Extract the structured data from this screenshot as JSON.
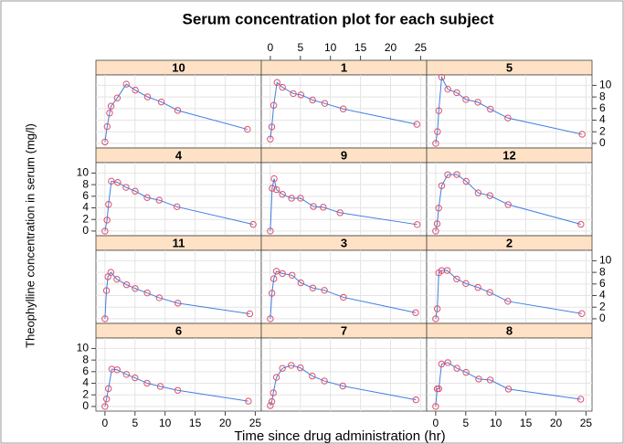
{
  "chart_data": {
    "type": "line",
    "title": "Serum concentration plot for each subject",
    "x_label": "Time since drug administration (hr)",
    "y_label": "Theophylline concentration in serum (mg/l)",
    "xlim": [
      -1.5,
      26
    ],
    "ylim": [
      -0.8,
      11.8
    ],
    "xticks": [
      0,
      5,
      10,
      15,
      20,
      25
    ],
    "yticks": [
      0,
      2,
      4,
      6,
      8,
      10
    ],
    "grid": true,
    "color": "#3d7fe0",
    "marker_color": "#e0506a",
    "strip_color": "#ffe2c6",
    "columns": 3,
    "panels": [
      {
        "name": "10",
        "x": [
          0,
          0.37,
          0.77,
          1.02,
          2.05,
          3.55,
          5.05,
          7.08,
          9.38,
          12.1,
          23.7
        ],
        "values": [
          0.24,
          2.89,
          5.22,
          6.41,
          7.83,
          10.21,
          9.18,
          8.02,
          7.14,
          5.68,
          2.42
        ]
      },
      {
        "name": "1",
        "x": [
          0,
          0.25,
          0.57,
          1.12,
          2.02,
          3.82,
          5.1,
          7.03,
          9.05,
          12.12,
          24.37
        ],
        "values": [
          0.74,
          2.84,
          6.57,
          10.5,
          9.66,
          8.58,
          8.36,
          7.47,
          6.89,
          5.94,
          3.28
        ]
      },
      {
        "name": "5",
        "x": [
          0,
          0.3,
          0.52,
          1,
          2.02,
          3.5,
          5.02,
          7.02,
          9.1,
          12,
          24.35
        ],
        "values": [
          0,
          2.02,
          5.63,
          11.4,
          9.33,
          8.74,
          7.56,
          7.09,
          5.9,
          4.37,
          1.57
        ]
      },
      {
        "name": "4",
        "x": [
          0,
          0.35,
          0.6,
          1.07,
          2.13,
          3.5,
          5.02,
          7.02,
          9.02,
          11.98,
          24.65
        ],
        "values": [
          0,
          1.89,
          4.6,
          8.6,
          8.38,
          7.54,
          6.88,
          5.78,
          5.33,
          4.19,
          1.15
        ]
      },
      {
        "name": "9",
        "x": [
          0,
          0.3,
          0.63,
          1.05,
          2.02,
          3.53,
          5.02,
          7.17,
          8.8,
          11.6,
          24.43
        ],
        "values": [
          0,
          7.37,
          9.03,
          7.14,
          6.33,
          5.66,
          5.67,
          4.24,
          4.11,
          3.16,
          1.12
        ]
      },
      {
        "name": "12",
        "x": [
          0,
          0.25,
          0.5,
          1,
          2,
          3.52,
          5.07,
          7.07,
          9.03,
          12.05,
          24.15
        ],
        "values": [
          0,
          1.25,
          3.96,
          7.82,
          9.72,
          9.75,
          8.57,
          6.59,
          6.11,
          4.57,
          1.17
        ]
      },
      {
        "name": "11",
        "x": [
          0,
          0.25,
          0.5,
          0.98,
          1.98,
          3.6,
          5.02,
          7.03,
          9.03,
          12.12,
          24.08
        ],
        "values": [
          0,
          4.86,
          7.24,
          8,
          6.81,
          5.87,
          5.22,
          4.45,
          3.62,
          2.69,
          0.86
        ]
      },
      {
        "name": "3",
        "x": [
          0,
          0.27,
          0.58,
          1.02,
          2.02,
          3.62,
          5.08,
          7.07,
          9,
          12.15,
          24.17
        ],
        "values": [
          0,
          4.4,
          6.9,
          8.2,
          7.8,
          7.5,
          6.2,
          5.3,
          4.9,
          3.7,
          1.05
        ]
      },
      {
        "name": "2",
        "x": [
          0,
          0.27,
          0.52,
          1,
          1.92,
          3.5,
          5.02,
          7.03,
          9,
          12,
          24.3
        ],
        "values": [
          0,
          1.72,
          7.91,
          8.31,
          8.33,
          6.85,
          6.08,
          5.4,
          4.55,
          3.01,
          0.9
        ]
      },
      {
        "name": "6",
        "x": [
          0,
          0.27,
          0.58,
          1.15,
          2.03,
          3.57,
          5,
          7,
          9.22,
          12.1,
          23.85
        ],
        "values": [
          0,
          1.29,
          3.08,
          6.44,
          6.32,
          5.53,
          4.94,
          4.02,
          3.46,
          2.78,
          0.92
        ]
      },
      {
        "name": "7",
        "x": [
          0,
          0.25,
          0.5,
          1.02,
          2.02,
          3.48,
          5,
          6.98,
          9,
          12.05,
          24.22
        ],
        "values": [
          0.15,
          0.85,
          2.35,
          5.02,
          6.58,
          7.09,
          6.66,
          5.25,
          4.39,
          3.53,
          1.15
        ]
      },
      {
        "name": "8",
        "x": [
          0,
          0.25,
          0.52,
          0.98,
          2.02,
          3.53,
          5.05,
          7.15,
          9.07,
          12.1,
          24.12
        ],
        "values": [
          0,
          3.05,
          3.05,
          7.31,
          7.56,
          6.59,
          5.88,
          4.73,
          4.57,
          3,
          1.25
        ]
      }
    ]
  }
}
